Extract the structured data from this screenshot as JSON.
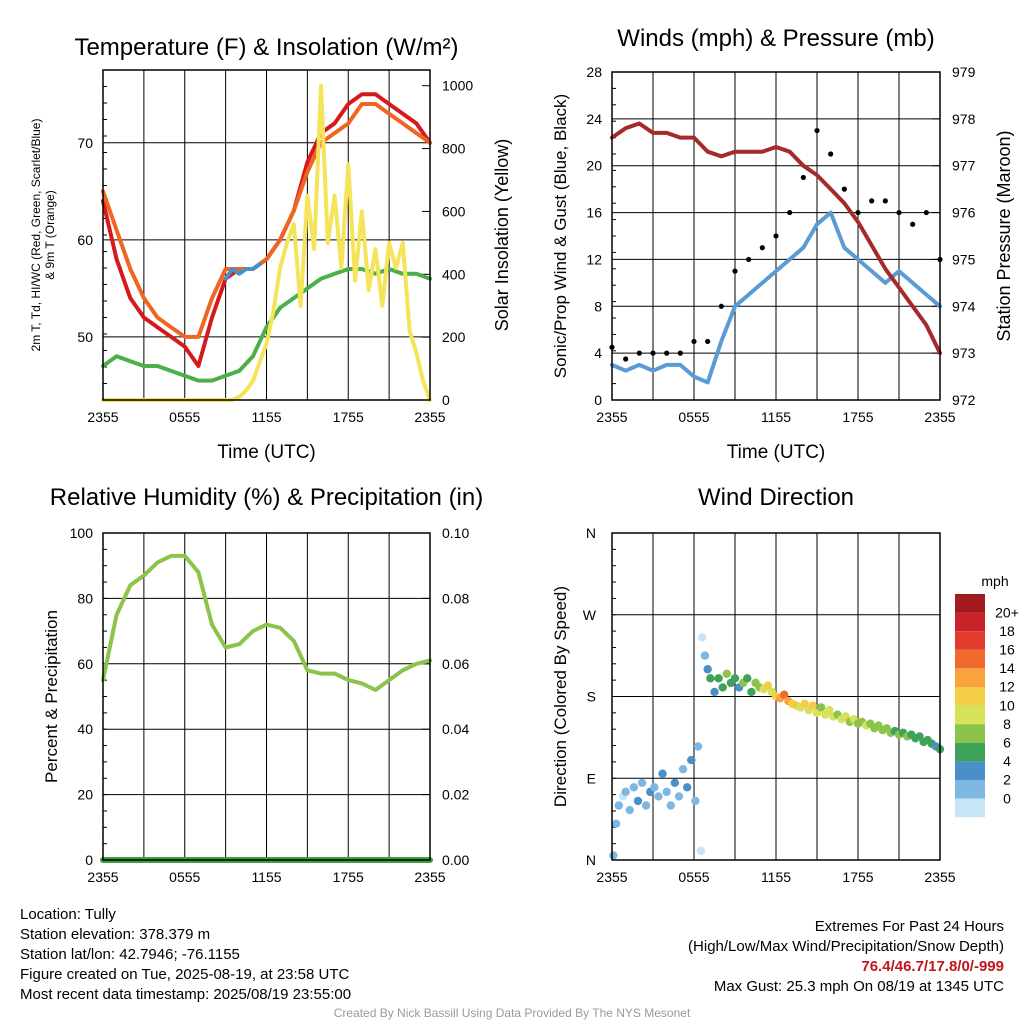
{
  "chart_data": [
    {
      "type": "line",
      "title": "Temperature (F) & Insolation (W/m²)",
      "xlabel": "Time (UTC)",
      "ylabel": "2m T, Td, HI/WC (Red, Green, Scarlet/Blue) & 9m T (Orange)",
      "y2label": "Solar Insolation (Yellow)",
      "x_ticks": [
        "2355",
        "0555",
        "1155",
        "1755",
        "2355"
      ],
      "y_ticks": [
        50,
        60,
        70
      ],
      "y2_ticks": [
        0,
        200,
        400,
        600,
        800,
        1000
      ],
      "ylim": [
        43.5,
        77.5
      ],
      "y2lim": [
        0,
        1050
      ],
      "grid": true,
      "series": [
        {
          "axis": "left",
          "color": "#d7191c",
          "x": [
            0,
            1,
            2,
            3,
            4,
            5,
            6,
            7,
            8,
            9,
            10,
            11,
            12,
            13,
            14,
            15,
            16,
            17,
            18,
            19,
            20,
            21,
            22,
            23,
            24
          ],
          "values": [
            64,
            58,
            54,
            52,
            51,
            50,
            49,
            47,
            52,
            56,
            57,
            57,
            58,
            60,
            63,
            68,
            71,
            72,
            74,
            75,
            75,
            74,
            73,
            72,
            70
          ]
        },
        {
          "axis": "left",
          "color": "#f16522",
          "x": [
            0,
            1,
            2,
            3,
            4,
            5,
            6,
            7,
            8,
            9,
            10,
            11,
            12,
            13,
            14,
            15,
            16,
            17,
            18,
            19,
            20,
            21,
            22,
            23,
            24
          ],
          "values": [
            65,
            61,
            57,
            54,
            52,
            51,
            50,
            50,
            54,
            57,
            57,
            57,
            58,
            60,
            63,
            67,
            70,
            71,
            72,
            74,
            74,
            73,
            72,
            71,
            70
          ]
        },
        {
          "axis": "left",
          "color": "#4daf4a",
          "x": [
            0,
            1,
            2,
            3,
            4,
            5,
            6,
            7,
            8,
            9,
            10,
            11,
            12,
            13,
            14,
            15,
            16,
            17,
            18,
            19,
            20,
            21,
            22,
            23,
            24
          ],
          "values": [
            47,
            48,
            47.5,
            47,
            47,
            46.5,
            46,
            45.5,
            45.5,
            46,
            46.5,
            48,
            51,
            53,
            54,
            55,
            56,
            56.5,
            57,
            57,
            56.5,
            57,
            56.5,
            56.5,
            56
          ]
        },
        {
          "axis": "left",
          "color": "#4a8fc7",
          "x": [
            9,
            9.5,
            10,
            10.5,
            11,
            11.5
          ],
          "values": [
            56,
            57,
            56.5,
            57,
            57,
            57.5
          ]
        },
        {
          "axis": "right",
          "color": "#f5e35a",
          "x": [
            0,
            9.5,
            10,
            10.5,
            11,
            11.5,
            12,
            12.5,
            13,
            13.5,
            14,
            14.5,
            15,
            15.5,
            16,
            16.5,
            17,
            17.5,
            18,
            18.5,
            19,
            19.5,
            20,
            20.5,
            21,
            21.5,
            22,
            22.5,
            23,
            23.5,
            24
          ],
          "values": [
            0,
            0,
            10,
            30,
            60,
            120,
            180,
            280,
            420,
            500,
            560,
            300,
            650,
            480,
            1000,
            500,
            650,
            420,
            750,
            380,
            600,
            350,
            480,
            300,
            500,
            420,
            500,
            220,
            150,
            60,
            0
          ]
        }
      ]
    },
    {
      "type": "line",
      "title": "Winds (mph) & Pressure (mb)",
      "xlabel": "Time (UTC)",
      "ylabel": "Sonic/Prop Wind & Gust (Blue, Black)",
      "y2label": "Station Pressure (Maroon)",
      "x_ticks": [
        "2355",
        "0555",
        "1155",
        "1755",
        "2355"
      ],
      "y_ticks": [
        0,
        4,
        8,
        12,
        16,
        20,
        24,
        28
      ],
      "y2_ticks": [
        972,
        973,
        974,
        975,
        976,
        977,
        978,
        979
      ],
      "ylim": [
        0,
        28
      ],
      "y2lim": [
        972,
        979
      ],
      "grid": true,
      "series": [
        {
          "axis": "left",
          "color": "#5b9bd5",
          "name": "wind",
          "x": [
            0,
            1,
            2,
            3,
            4,
            5,
            6,
            7,
            8,
            9,
            10,
            11,
            12,
            13,
            14,
            15,
            16,
            17,
            18,
            19,
            20,
            21,
            22,
            23,
            24
          ],
          "values": [
            3,
            2.5,
            3,
            2.5,
            3,
            3,
            2,
            1.5,
            5,
            8,
            9,
            10,
            11,
            12,
            13,
            15,
            16,
            13,
            12,
            11,
            10,
            11,
            10,
            9,
            8
          ]
        },
        {
          "axis": "left",
          "color": "#000000",
          "name": "gust",
          "x": [
            0,
            1,
            2,
            3,
            4,
            5,
            6,
            7,
            8,
            9,
            10,
            11,
            12,
            13,
            14,
            15,
            16,
            17,
            18,
            19,
            20,
            21,
            22,
            23,
            24
          ],
          "values": [
            4.5,
            3.5,
            4,
            4,
            4,
            4,
            5,
            5,
            8,
            11,
            12,
            13,
            14,
            16,
            19,
            23,
            21,
            18,
            16,
            17,
            17,
            16,
            15,
            16,
            12
          ]
        },
        {
          "axis": "right",
          "color": "#a52a2a",
          "name": "pressure",
          "x": [
            0,
            1,
            2,
            3,
            4,
            5,
            6,
            7,
            8,
            9,
            10,
            11,
            12,
            13,
            14,
            15,
            16,
            17,
            18,
            19,
            20,
            21,
            22,
            23,
            24
          ],
          "values": [
            977.6,
            977.8,
            977.9,
            977.7,
            977.7,
            977.6,
            977.6,
            977.3,
            977.2,
            977.3,
            977.3,
            977.3,
            977.4,
            977.3,
            977.0,
            976.8,
            976.5,
            976.2,
            975.8,
            975.3,
            974.8,
            974.4,
            974.0,
            973.6,
            973.0
          ]
        }
      ]
    },
    {
      "type": "line",
      "title": "Relative Humidity (%) & Precipitation (in)",
      "xlabel": "",
      "ylabel": "Percent & Precipitation",
      "x_ticks": [
        "2355",
        "0555",
        "1155",
        "1755",
        "2355"
      ],
      "y_ticks": [
        0,
        20,
        40,
        60,
        80,
        100
      ],
      "y2_ticks": [
        "0.00",
        "0.02",
        "0.04",
        "0.06",
        "0.08",
        "0.10"
      ],
      "ylim": [
        0,
        100
      ],
      "y2lim": [
        0,
        0.1
      ],
      "grid": true,
      "series": [
        {
          "axis": "left",
          "color": "#8cc34a",
          "name": "rh",
          "x": [
            0,
            1,
            2,
            3,
            4,
            5,
            6,
            7,
            8,
            9,
            10,
            11,
            12,
            13,
            14,
            15,
            16,
            17,
            18,
            19,
            20,
            21,
            22,
            23,
            24
          ],
          "values": [
            55,
            75,
            84,
            87,
            91,
            93,
            93,
            88,
            72,
            65,
            66,
            70,
            72,
            71,
            67,
            58,
            57,
            57,
            55,
            54,
            52,
            55,
            58,
            60,
            61
          ]
        },
        {
          "axis": "right",
          "color": "#3fa03f",
          "name": "precip",
          "x": [
            0,
            24
          ],
          "values": [
            0,
            0
          ]
        }
      ]
    },
    {
      "type": "scatter",
      "title": "Wind Direction",
      "ylabel": "Direction (Colored By Speed)",
      "x_ticks": [
        "2355",
        "0555",
        "1155",
        "1755",
        "2355"
      ],
      "y_ticks": [
        "N",
        "E",
        "S",
        "W",
        "N"
      ],
      "legend_unit": "mph",
      "legend_labels": [
        "20+",
        "18",
        "16",
        "14",
        "12",
        "10",
        "8",
        "6",
        "4",
        "2",
        "0"
      ],
      "legend_colors": [
        "#a11b1f",
        "#c8242a",
        "#e23a2c",
        "#f16a2d",
        "#f9a33e",
        "#f3cd46",
        "#d7e15a",
        "#8cc34a",
        "#3fa25a",
        "#4a8fc7",
        "#7fb7e3",
        "#c6e6f8"
      ],
      "points": [
        {
          "x": 0.1,
          "dir": 5,
          "speed": 3
        },
        {
          "x": 0.3,
          "dir": 40,
          "speed": 2
        },
        {
          "x": 0.5,
          "dir": 60,
          "speed": 3
        },
        {
          "x": 0.8,
          "dir": 70,
          "speed": 1
        },
        {
          "x": 1.0,
          "dir": 75,
          "speed": 3
        },
        {
          "x": 1.3,
          "dir": 55,
          "speed": 2
        },
        {
          "x": 1.6,
          "dir": 80,
          "speed": 3
        },
        {
          "x": 1.9,
          "dir": 65,
          "speed": 4
        },
        {
          "x": 2.2,
          "dir": 85,
          "speed": 3
        },
        {
          "x": 2.5,
          "dir": 60,
          "speed": 2
        },
        {
          "x": 2.8,
          "dir": 75,
          "speed": 4
        },
        {
          "x": 3.1,
          "dir": 80,
          "speed": 3
        },
        {
          "x": 3.4,
          "dir": 70,
          "speed": 3
        },
        {
          "x": 3.7,
          "dir": 95,
          "speed": 4
        },
        {
          "x": 4.0,
          "dir": 75,
          "speed": 3
        },
        {
          "x": 4.3,
          "dir": 60,
          "speed": 2
        },
        {
          "x": 4.6,
          "dir": 85,
          "speed": 4
        },
        {
          "x": 4.9,
          "dir": 70,
          "speed": 3
        },
        {
          "x": 5.2,
          "dir": 100,
          "speed": 3
        },
        {
          "x": 5.5,
          "dir": 80,
          "speed": 4
        },
        {
          "x": 5.8,
          "dir": 110,
          "speed": 4
        },
        {
          "x": 6.1,
          "dir": 65,
          "speed": 3
        },
        {
          "x": 6.3,
          "dir": 125,
          "speed": 2
        },
        {
          "x": 6.5,
          "dir": 10,
          "speed": 1
        },
        {
          "x": 6.6,
          "dir": 245,
          "speed": 1
        },
        {
          "x": 6.8,
          "dir": 225,
          "speed": 2
        },
        {
          "x": 7.0,
          "dir": 210,
          "speed": 4
        },
        {
          "x": 7.2,
          "dir": 200,
          "speed": 6
        },
        {
          "x": 7.5,
          "dir": 185,
          "speed": 5
        },
        {
          "x": 7.8,
          "dir": 200,
          "speed": 7
        },
        {
          "x": 8.1,
          "dir": 190,
          "speed": 6
        },
        {
          "x": 8.4,
          "dir": 205,
          "speed": 8
        },
        {
          "x": 8.7,
          "dir": 195,
          "speed": 6
        },
        {
          "x": 9.0,
          "dir": 200,
          "speed": 7
        },
        {
          "x": 9.3,
          "dir": 190,
          "speed": 5
        },
        {
          "x": 9.6,
          "dir": 195,
          "speed": 8
        },
        {
          "x": 9.9,
          "dir": 200,
          "speed": 7
        },
        {
          "x": 10.2,
          "dir": 185,
          "speed": 6
        },
        {
          "x": 10.5,
          "dir": 195,
          "speed": 8
        },
        {
          "x": 10.8,
          "dir": 190,
          "speed": 9
        },
        {
          "x": 11.1,
          "dir": 188,
          "speed": 10
        },
        {
          "x": 11.4,
          "dir": 192,
          "speed": 12
        },
        {
          "x": 11.7,
          "dir": 185,
          "speed": 11
        },
        {
          "x": 12.0,
          "dir": 180,
          "speed": 13
        },
        {
          "x": 12.3,
          "dir": 178,
          "speed": 15
        },
        {
          "x": 12.6,
          "dir": 182,
          "speed": 16
        },
        {
          "x": 12.9,
          "dir": 175,
          "speed": 14
        },
        {
          "x": 13.2,
          "dir": 172,
          "speed": 12
        },
        {
          "x": 13.5,
          "dir": 170,
          "speed": 13
        },
        {
          "x": 13.8,
          "dir": 168,
          "speed": 11
        },
        {
          "x": 14.1,
          "dir": 172,
          "speed": 12
        },
        {
          "x": 14.4,
          "dir": 165,
          "speed": 10
        },
        {
          "x": 14.7,
          "dir": 170,
          "speed": 12
        },
        {
          "x": 15.0,
          "dir": 162,
          "speed": 11
        },
        {
          "x": 15.3,
          "dir": 168,
          "speed": 9
        },
        {
          "x": 15.6,
          "dir": 160,
          "speed": 10
        },
        {
          "x": 15.9,
          "dir": 165,
          "speed": 11
        },
        {
          "x": 16.2,
          "dir": 158,
          "speed": 10
        },
        {
          "x": 16.5,
          "dir": 160,
          "speed": 9
        },
        {
          "x": 16.8,
          "dir": 155,
          "speed": 10
        },
        {
          "x": 17.1,
          "dir": 158,
          "speed": 11
        },
        {
          "x": 17.4,
          "dir": 152,
          "speed": 9
        },
        {
          "x": 17.7,
          "dir": 155,
          "speed": 10
        },
        {
          "x": 18.0,
          "dir": 150,
          "speed": 8
        },
        {
          "x": 18.3,
          "dir": 152,
          "speed": 9
        },
        {
          "x": 18.6,
          "dir": 148,
          "speed": 10
        },
        {
          "x": 18.9,
          "dir": 150,
          "speed": 9
        },
        {
          "x": 19.2,
          "dir": 145,
          "speed": 8
        },
        {
          "x": 19.5,
          "dir": 148,
          "speed": 9
        },
        {
          "x": 19.8,
          "dir": 143,
          "speed": 8
        },
        {
          "x": 20.1,
          "dir": 145,
          "speed": 9
        },
        {
          "x": 20.4,
          "dir": 140,
          "speed": 8
        },
        {
          "x": 20.7,
          "dir": 142,
          "speed": 7
        },
        {
          "x": 21.0,
          "dir": 138,
          "speed": 8
        },
        {
          "x": 21.3,
          "dir": 140,
          "speed": 7
        },
        {
          "x": 21.6,
          "dir": 136,
          "speed": 8
        },
        {
          "x": 21.9,
          "dir": 138,
          "speed": 7
        },
        {
          "x": 22.2,
          "dir": 134,
          "speed": 7
        },
        {
          "x": 22.5,
          "dir": 136,
          "speed": 6
        },
        {
          "x": 22.8,
          "dir": 130,
          "speed": 7
        },
        {
          "x": 23.1,
          "dir": 132,
          "speed": 6
        },
        {
          "x": 23.4,
          "dir": 128,
          "speed": 6
        },
        {
          "x": 23.7,
          "dir": 125,
          "speed": 5
        },
        {
          "x": 24.0,
          "dir": 122,
          "speed": 6
        }
      ]
    }
  ],
  "info": {
    "location": "Location: Tully",
    "elevation": "Station elevation: 378.379 m",
    "latlon": "Station lat/lon: 42.7946; -76.1155",
    "created": "Figure created on Tue, 2025-08-19, at 23:58 UTC",
    "recent": "Most recent data timestamp: 2025/08/19 23:55:00"
  },
  "extremes": {
    "title": "Extremes For Past 24 Hours",
    "subtitle": "(High/Low/Max Wind/Precipitation/Snow Depth)",
    "values": "76.4/46.7/17.8/0/-999",
    "gust": "Max Gust: 25.3 mph On 08/19 at 1345 UTC"
  },
  "credit": "Created By Nick Bassill Using Data Provided By The NYS Mesonet"
}
